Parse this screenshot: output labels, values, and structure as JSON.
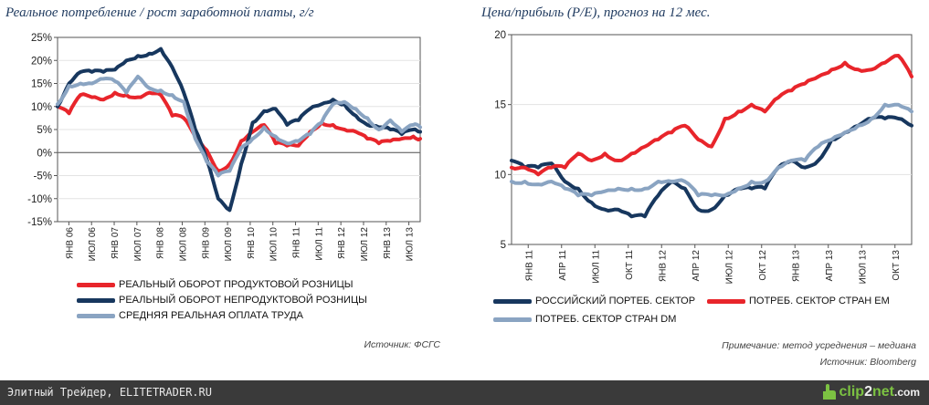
{
  "chart_data": [
    {
      "type": "line",
      "title": "Реальное потребление / рост заработной платы, г/г",
      "y_unit": "%",
      "ylim": [
        -15,
        25
      ],
      "yticks": [
        "25%",
        "20%",
        "15%",
        "10%",
        "5%",
        "0%",
        "-5%",
        "-10%",
        "-15%"
      ],
      "x_tick_labels": [
        "ЯНВ 06",
        "ИЮЛ 06",
        "ЯНВ 07",
        "ИЮЛ 07",
        "ЯНВ 08",
        "ИЮЛ 08",
        "ЯНВ 09",
        "ИЮЛ 09",
        "ЯНВ 10",
        "ИЮЛ 10",
        "ЯНВ 11",
        "ИЮЛ 11",
        "ЯНВ 12",
        "ИЮЛ 12",
        "ЯНВ 13",
        "ИЮЛ 13"
      ],
      "x": [
        2006.0,
        2006.25,
        2006.5,
        2006.75,
        2007.0,
        2007.25,
        2007.5,
        2007.75,
        2008.0,
        2008.25,
        2008.5,
        2008.75,
        2009.0,
        2009.25,
        2009.5,
        2009.75,
        2010.0,
        2010.25,
        2010.5,
        2010.75,
        2011.0,
        2011.25,
        2011.5,
        2011.75,
        2012.0,
        2012.25,
        2012.5,
        2012.75,
        2013.0,
        2013.25,
        2013.5,
        2013.75,
        2013.9
      ],
      "series": [
        {
          "name": "РЕАЛЬНЫЙ ОБОРОТ ПРОДУКТОВОЙ РОЗНИЦЫ",
          "color": "#e8252b",
          "values": [
            10,
            8.5,
            12.5,
            12,
            11.5,
            13,
            12.5,
            12,
            13,
            12.5,
            8,
            7.5,
            3.5,
            0.5,
            -4,
            -2.5,
            2.5,
            4.5,
            6,
            2,
            1.5,
            1.5,
            4.5,
            6.5,
            6,
            5,
            4.5,
            3,
            2,
            2.5,
            3,
            3.5,
            3
          ]
        },
        {
          "name": "РЕАЛЬНЫЙ ОБОРОТ НЕПРОДУКТОВОЙ РОЗНИЦЫ",
          "color": "#17375e",
          "values": [
            10,
            15,
            17.5,
            17.5,
            17.5,
            18,
            20,
            21,
            21.5,
            22.5,
            18.5,
            13,
            5,
            -1.5,
            -10,
            -12.5,
            -2.5,
            6.5,
            9,
            9.5,
            6,
            7,
            9.5,
            10.5,
            11.5,
            10.5,
            8,
            6,
            5.5,
            5,
            4,
            5,
            4.5
          ]
        },
        {
          "name": "СРЕДНЯЯ РЕАЛЬНАЯ ОПЛАТА ТРУДА",
          "color": "#8aa4c2",
          "values": [
            10.5,
            14.5,
            15,
            15,
            16,
            15.5,
            13,
            16.5,
            14,
            13.5,
            12.5,
            11,
            3,
            -2,
            -5,
            -4,
            1,
            3,
            5.5,
            3.5,
            2,
            2.5,
            4,
            6.5,
            10.5,
            11,
            9.5,
            7.5,
            5,
            7,
            4.5,
            6,
            5.5
          ]
        }
      ]
    },
    {
      "type": "line",
      "title": "Цена/прибыль (P/E), прогноз на 12 мес.",
      "ylim": [
        5,
        20
      ],
      "yticks": [
        "20",
        "15",
        "10",
        "5"
      ],
      "x_tick_labels": [
        "ЯНВ 11",
        "АПР 11",
        "ИЮЛ 11",
        "ОКТ 11",
        "ЯНВ 12",
        "АПР 12",
        "ИЮЛ 12",
        "ОКТ 12",
        "ЯНВ 13",
        "АПР 13",
        "ИЮЛ 13",
        "ОКТ 13"
      ],
      "x": [
        2011.0,
        2011.1,
        2011.2,
        2011.3,
        2011.4,
        2011.5,
        2011.6,
        2011.7,
        2011.8,
        2011.9,
        2012.0,
        2012.1,
        2012.2,
        2012.3,
        2012.4,
        2012.5,
        2012.6,
        2012.7,
        2012.8,
        2012.9,
        2013.0,
        2013.1,
        2013.2,
        2013.3,
        2013.4,
        2013.5,
        2013.6,
        2013.7,
        2013.8,
        2013.9,
        2014.0
      ],
      "series": [
        {
          "name": "РОССИЙСКИЙ ПОРТЕБ. СЕКТОР",
          "color": "#17375e",
          "values": [
            11,
            10.5,
            10.5,
            10.8,
            9.5,
            9,
            8,
            7.5,
            7.5,
            7,
            7,
            8.5,
            9.5,
            9,
            7.5,
            7.5,
            8.5,
            9,
            9,
            9,
            10.5,
            11,
            10.5,
            11,
            12.5,
            13,
            13.5,
            14,
            14,
            14,
            13.5
          ]
        },
        {
          "name": "ПОТРЕБ. СЕКТОР СТРАН ЕМ",
          "color": "#e8252b",
          "values": [
            10.5,
            10.5,
            10,
            10.5,
            10.5,
            11.5,
            11,
            11.5,
            11,
            11.5,
            12,
            12.5,
            13,
            13.5,
            12.5,
            12,
            14,
            14.5,
            15,
            14.5,
            15.5,
            16,
            16.5,
            17,
            17.5,
            18,
            17.5,
            17.5,
            18,
            18.5,
            17
          ]
        },
        {
          "name": "ПОТРЕБ. СЕКТОР СТРАН DM",
          "color": "#8aa4c2",
          "values": [
            9.5,
            9.5,
            9.3,
            9.5,
            9,
            8.5,
            8.5,
            8.8,
            9,
            9,
            9,
            9.5,
            9.5,
            9.5,
            8.5,
            8.5,
            8.5,
            9,
            9.5,
            9.5,
            10.5,
            11,
            11,
            12,
            12.5,
            13,
            13.5,
            14,
            15,
            15,
            14.5
          ]
        }
      ]
    }
  ],
  "notes": {
    "left_source": "Источник: ФСГС",
    "right_note": "Примечание: метод усреднения – медиана",
    "right_source": "Источник: Bloomberg"
  },
  "footer": {
    "site_text": "Элитный Трейдер, ELITETRADER.RU",
    "logo_text_a": "clip",
    "logo_text_b": "2",
    "logo_text_c": "net",
    "logo_suffix": ".com"
  }
}
